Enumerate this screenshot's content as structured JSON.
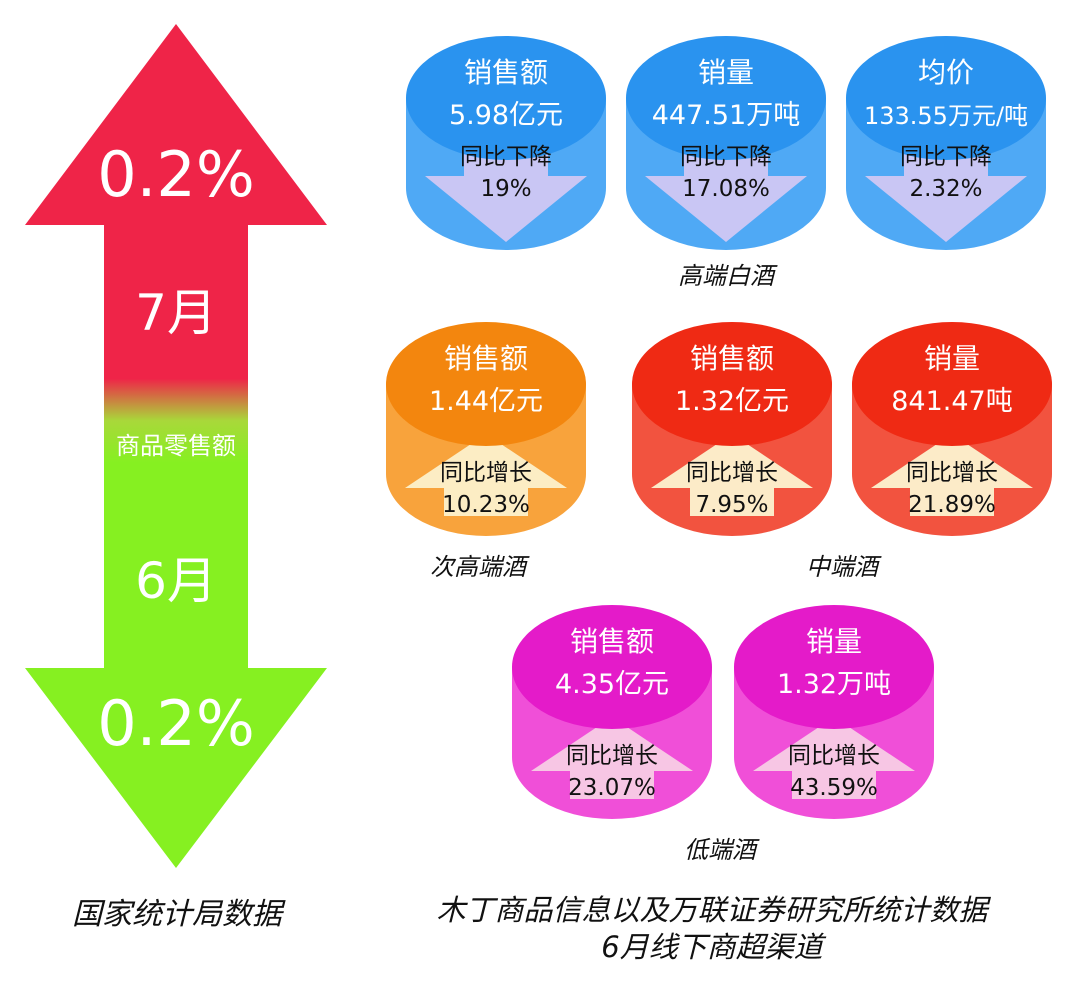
{
  "left_panel": {
    "july_value": "0.2%",
    "july_label": "7月",
    "center_label": "商品零售额",
    "june_label": "6月",
    "june_value": "0.2%",
    "caption": "国家统计局数据",
    "colors": {
      "up": "#ef2448",
      "down": "#86f021",
      "center_text": "#ffffff"
    }
  },
  "groups": {
    "high_end": {
      "caption": "高端白酒"
    },
    "sub_high_end": {
      "caption": "次高端酒"
    },
    "mid_end": {
      "caption": "中端酒"
    },
    "low_end": {
      "caption": "低端酒"
    }
  },
  "cylinders": [
    {
      "id": "high-sales",
      "title": "销售额",
      "value": "5.98亿元",
      "change_label": "同比下降",
      "change_value": "19%",
      "direction": "down",
      "top_color": "#2a93ef",
      "body_color": "#4fa9f5",
      "arrow_color": "#c9c6f4"
    },
    {
      "id": "high-volume",
      "title": "销量",
      "value": "447.51万吨",
      "change_label": "同比下降",
      "change_value": "17.08%",
      "direction": "down",
      "top_color": "#2a93ef",
      "body_color": "#4fa9f5",
      "arrow_color": "#c9c6f4"
    },
    {
      "id": "high-price",
      "title": "均价",
      "value": "133.55万元/吨",
      "change_label": "同比下降",
      "change_value": "2.32%",
      "direction": "down",
      "top_color": "#2a93ef",
      "body_color": "#4fa9f5",
      "arrow_color": "#c9c6f4"
    },
    {
      "id": "subhigh-sales",
      "title": "销售额",
      "value": "1.44亿元",
      "change_label": "同比增长",
      "change_value": "10.23%",
      "direction": "up",
      "top_color": "#f3860e",
      "body_color": "#f8a33c",
      "arrow_color": "#fcedc4"
    },
    {
      "id": "mid-sales",
      "title": "销售额",
      "value": "1.32亿元",
      "change_label": "同比增长",
      "change_value": "7.95%",
      "direction": "up",
      "top_color": "#ef2a14",
      "body_color": "#f2533f",
      "arrow_color": "#fcebc8"
    },
    {
      "id": "mid-volume",
      "title": "销量",
      "value": "841.47吨",
      "change_label": "同比增长",
      "change_value": "21.89%",
      "direction": "up",
      "top_color": "#ef2a14",
      "body_color": "#f2533f",
      "arrow_color": "#fcebc8"
    },
    {
      "id": "low-sales",
      "title": "销售额",
      "value": "4.35亿元",
      "change_label": "同比增长",
      "change_value": "23.07%",
      "direction": "up",
      "top_color": "#e41bc9",
      "body_color": "#f04fd8",
      "arrow_color": "#f7c6e4"
    },
    {
      "id": "low-volume",
      "title": "销量",
      "value": "1.32万吨",
      "change_label": "同比增长",
      "change_value": "43.59%",
      "direction": "up",
      "top_color": "#e41bc9",
      "body_color": "#f04fd8",
      "arrow_color": "#f7c6e4"
    }
  ],
  "source": {
    "line1": "木丁商品信息以及万联证券研究所统计数据",
    "line2": "6月线下商超渠道"
  }
}
